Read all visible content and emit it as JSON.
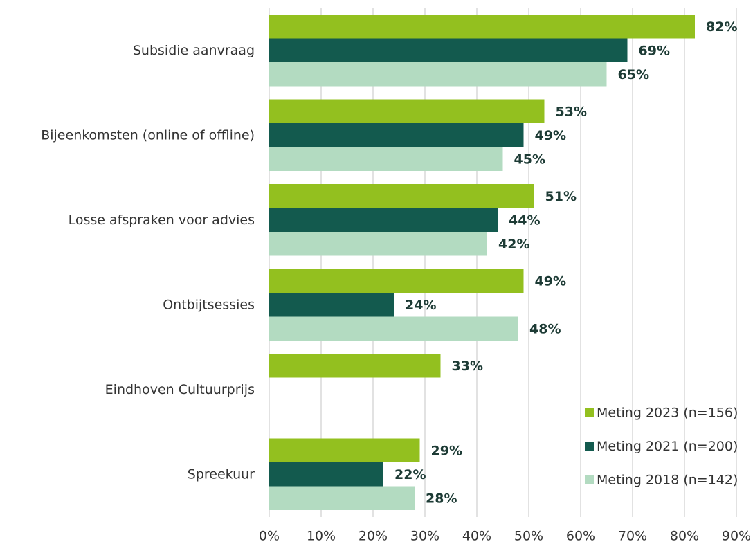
{
  "chart_data": {
    "type": "bar",
    "orientation": "horizontal",
    "categories": [
      "Subsidie aanvraag",
      "Bijeenkomsten (online of offline)",
      "Losse afspraken voor advies",
      "Ontbijtsessies",
      "Eindhoven Cultuurprijs",
      "Spreekuur"
    ],
    "series": [
      {
        "name": "Meting 2023 (n=156)",
        "color": "#93c01f",
        "values": [
          82,
          53,
          51,
          49,
          33,
          29
        ],
        "value_labels": [
          "82%",
          "53%",
          "51%",
          "49%",
          "33%",
          "29%"
        ]
      },
      {
        "name": "Meting 2021 (n=200)",
        "color": "#135a4e",
        "values": [
          69,
          49,
          44,
          24,
          null,
          22
        ],
        "value_labels": [
          "69%",
          "49%",
          "44%",
          "24%",
          null,
          "22%"
        ]
      },
      {
        "name": "Meting 2018 (n=142)",
        "color": "#b3dbc1",
        "values": [
          65,
          45,
          42,
          48,
          null,
          28
        ],
        "value_labels": [
          "65%",
          "45%",
          "42%",
          "48%",
          null,
          "28%"
        ]
      }
    ],
    "xlim": [
      0,
      90
    ],
    "xticks": [
      {
        "value": 0,
        "label": "0%"
      },
      {
        "value": 10,
        "label": "10%"
      },
      {
        "value": 20,
        "label": "20%"
      },
      {
        "value": 30,
        "label": "30%"
      },
      {
        "value": 40,
        "label": "40%"
      },
      {
        "value": 50,
        "label": "50%"
      },
      {
        "value": 60,
        "label": "60%"
      },
      {
        "value": 70,
        "label": "70%"
      },
      {
        "value": 80,
        "label": "80%"
      },
      {
        "value": 90,
        "label": "90%"
      }
    ],
    "grid": true,
    "legend": "lower right"
  }
}
